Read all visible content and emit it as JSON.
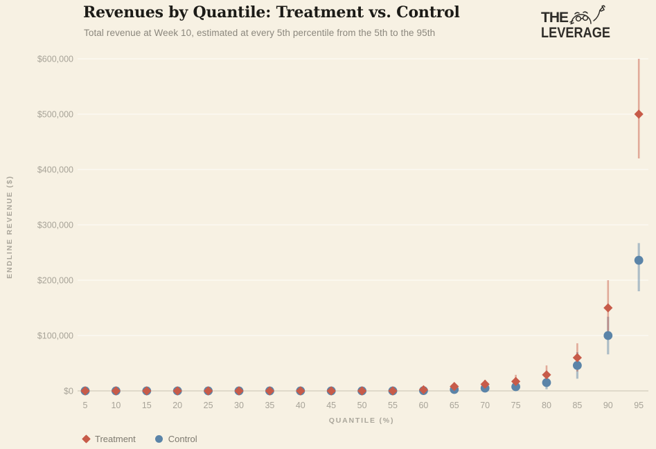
{
  "page": {
    "background": "#f7f1e3"
  },
  "header": {
    "title": "Revenues by Quantile: Treatment vs. Control",
    "subtitle": "Total revenue at Week 10, estimated at every 5th percentile from the 5th to the 95th",
    "logo": {
      "line1": "THE",
      "line2": "LEVERAGE"
    }
  },
  "chart_data": {
    "type": "scatter",
    "title": "Revenues by Quantile: Treatment vs. Control",
    "subtitle": "Total revenue at Week 10, estimated at every 5th percentile from the 5th to the 95th",
    "xlabel": "QUANTILE (%)",
    "ylabel": "ENDLINE REVENUE ($)",
    "x": [
      5,
      10,
      15,
      20,
      25,
      30,
      35,
      40,
      45,
      50,
      55,
      60,
      65,
      70,
      75,
      80,
      85,
      90,
      95
    ],
    "ylim": [
      0,
      600000
    ],
    "grid": true,
    "legend_position": "bottom-left",
    "yticks": [
      {
        "value": 0,
        "label": "$0"
      },
      {
        "value": 100000,
        "label": "$100,000"
      },
      {
        "value": 200000,
        "label": "$200,000"
      },
      {
        "value": 300000,
        "label": "$300,000"
      },
      {
        "value": 400000,
        "label": "$400,000"
      },
      {
        "value": 500000,
        "label": "$500,000"
      },
      {
        "value": 600000,
        "label": "$600,000"
      }
    ],
    "series": [
      {
        "name": "Treatment",
        "marker": "diamond",
        "color": "#c75b49",
        "error_color": "rgba(201,92,73,0.48)",
        "values": [
          0,
          0,
          0,
          0,
          0,
          0,
          0,
          0,
          0,
          0,
          0,
          2000,
          8000,
          12000,
          17000,
          29000,
          60000,
          150000,
          500000
        ],
        "ci_low": [
          null,
          null,
          null,
          null,
          null,
          null,
          null,
          null,
          null,
          null,
          null,
          null,
          3000,
          6000,
          8000,
          15000,
          35000,
          105000,
          420000
        ],
        "ci_high": [
          null,
          null,
          null,
          null,
          null,
          null,
          null,
          null,
          null,
          null,
          null,
          null,
          13000,
          20000,
          29000,
          46000,
          86000,
          200000,
          600000
        ]
      },
      {
        "name": "Control",
        "marker": "circle",
        "color": "#5b84a8",
        "error_color": "rgba(91,132,168,0.48)",
        "values": [
          0,
          0,
          0,
          0,
          0,
          0,
          0,
          0,
          0,
          0,
          0,
          500,
          2500,
          5000,
          7500,
          15000,
          46000,
          100000,
          236000
        ],
        "ci_low": [
          null,
          null,
          null,
          null,
          null,
          null,
          null,
          null,
          null,
          null,
          null,
          null,
          null,
          null,
          2000,
          3000,
          22000,
          66000,
          180000
        ],
        "ci_high": [
          null,
          null,
          null,
          null,
          null,
          null,
          null,
          null,
          null,
          null,
          null,
          null,
          null,
          null,
          14000,
          27000,
          70000,
          134000,
          267000
        ]
      }
    ]
  },
  "colors": {
    "background": "#f7f1e3",
    "grid_line": "#fcf9f1",
    "axis_line": "#d9d3c3",
    "tick_text": "#a7a398",
    "treatment": "#c75b49",
    "control": "#5b84a8"
  }
}
